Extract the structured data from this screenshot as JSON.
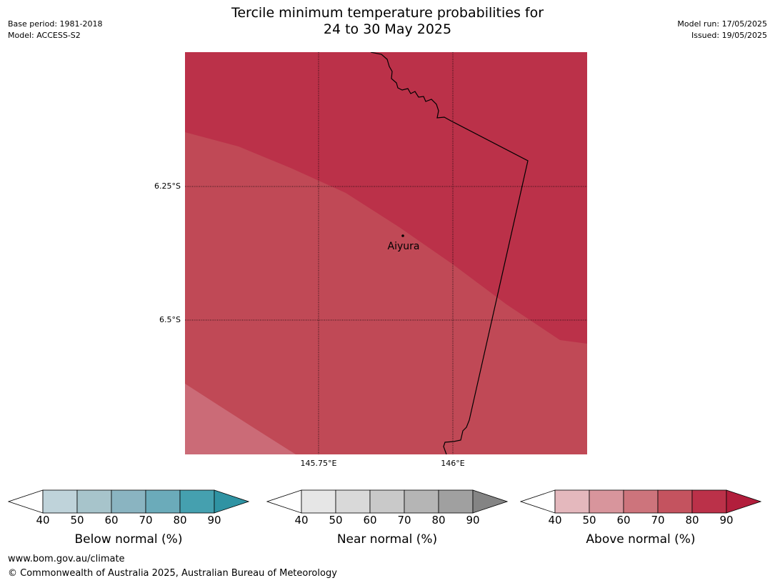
{
  "header": {
    "title_line1": "Tercile minimum temperature probabilities for",
    "title_line2": "24 to 30 May 2025",
    "base_period": "Base period: 1981-2018",
    "model": "Model: ACCESS-S2",
    "model_run": "Model run: 17/05/2025",
    "issued": "Issued: 19/05/2025"
  },
  "map": {
    "lat_labels": [
      "6.25°S",
      "6.5°S"
    ],
    "lon_labels": [
      "145.75°E",
      "146°E"
    ],
    "place": "Aiyura",
    "colors": {
      "band_90": "#bb3149",
      "band_80": "#c04956",
      "band_70": "#cb6b77"
    }
  },
  "colorbars": [
    {
      "title": "Below normal (%)",
      "ticks": [
        "40",
        "50",
        "60",
        "70",
        "80",
        "90"
      ],
      "colors": [
        "#bfd3da",
        "#a7c4cb",
        "#8ab4c1",
        "#6babba",
        "#45a0af",
        "#2f93a3"
      ]
    },
    {
      "title": "Near normal (%)",
      "ticks": [
        "40",
        "50",
        "60",
        "70",
        "80",
        "90"
      ],
      "colors": [
        "#e6e6e6",
        "#d9d9d9",
        "#c9c9c9",
        "#b5b5b5",
        "#a0a0a0",
        "#848484"
      ]
    },
    {
      "title": "Above normal (%)",
      "ticks": [
        "40",
        "50",
        "60",
        "70",
        "80",
        "90"
      ],
      "colors": [
        "#e4b8bd",
        "#d8959c",
        "#cd747c",
        "#c4535f",
        "#bb3149",
        "#b21e3c"
      ]
    }
  ],
  "footer": {
    "url": "www.bom.gov.au/climate",
    "copyright": "© Commonwealth of Australia 2025, Australian Bureau of Meteorology"
  }
}
